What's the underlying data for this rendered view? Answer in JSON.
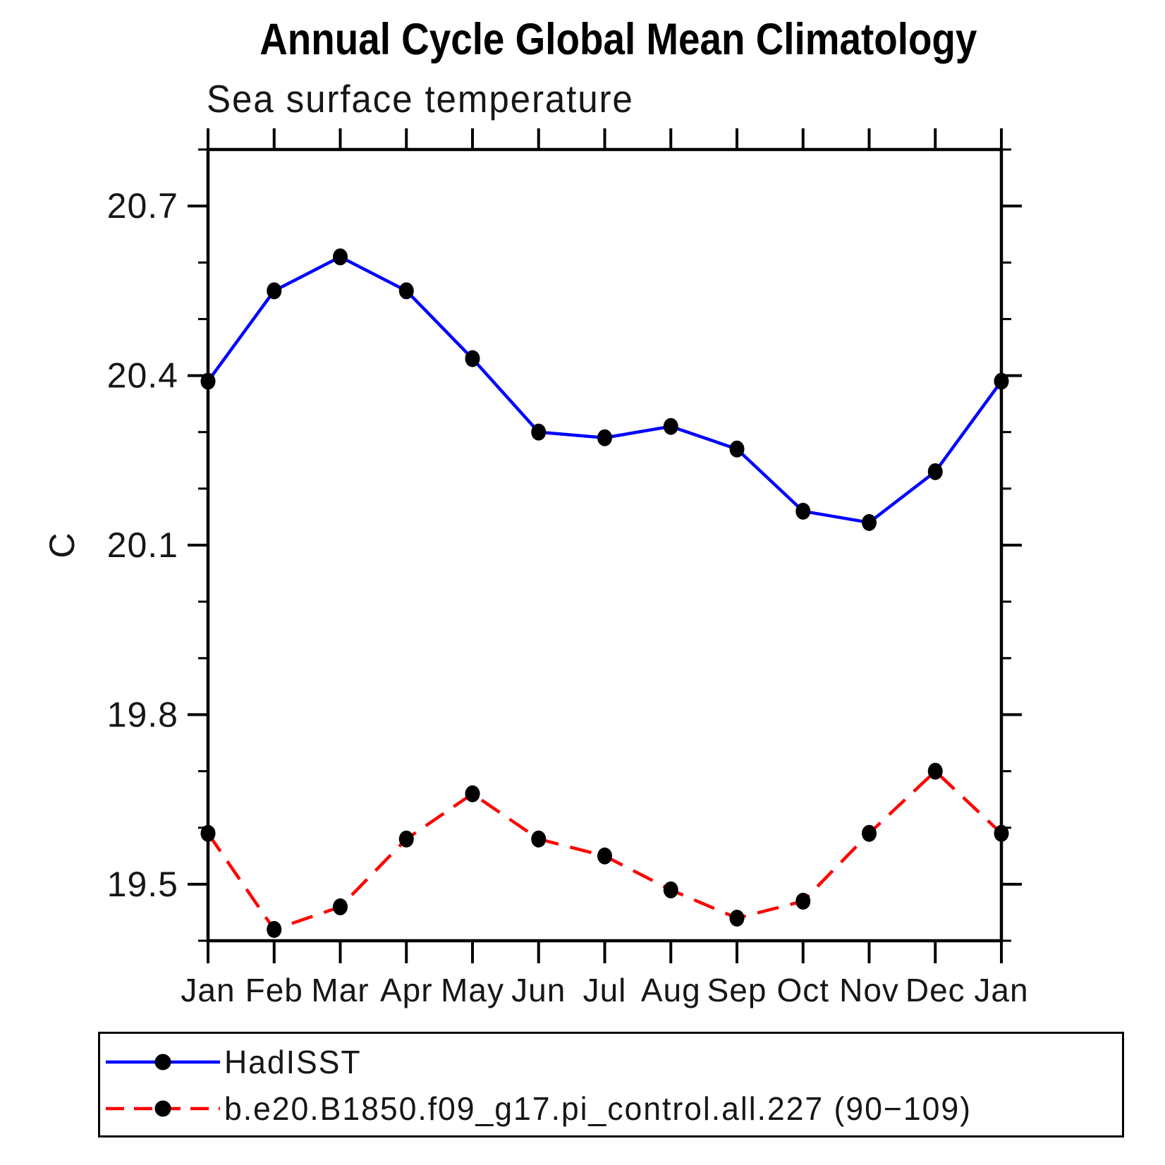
{
  "chart_data": {
    "type": "line",
    "title": "Annual Cycle Global Mean Climatology",
    "subtitle": "Sea surface temperature",
    "ylabel": "C",
    "xlabel": "",
    "categories": [
      "Jan",
      "Feb",
      "Mar",
      "Apr",
      "May",
      "Jun",
      "Jul",
      "Aug",
      "Sep",
      "Oct",
      "Nov",
      "Dec",
      "Jan"
    ],
    "ylim": [
      19.4,
      20.8
    ],
    "yticks_major": [
      {
        "value": 20.7,
        "label": "20.7"
      },
      {
        "value": 20.4,
        "label": "20.4"
      },
      {
        "value": 20.1,
        "label": "20.1"
      },
      {
        "value": 19.8,
        "label": "19.8"
      },
      {
        "value": 19.5,
        "label": "19.5"
      }
    ],
    "yticks_minor": [
      19.4,
      19.6,
      19.7,
      19.9,
      20.0,
      20.2,
      20.3,
      20.5,
      20.6,
      20.8
    ],
    "grid": false,
    "legend_position": "bottom-box",
    "axis_color": "#000000",
    "background_color": "#ffffff",
    "series": [
      {
        "name": "HadISST",
        "color": "#0000ff",
        "line_style": "solid",
        "marker": "circle",
        "marker_color": "#000000",
        "values": [
          20.39,
          20.55,
          20.61,
          20.55,
          20.43,
          20.3,
          20.29,
          20.31,
          20.27,
          20.16,
          20.14,
          20.23,
          20.39
        ]
      },
      {
        "name": "b.e20.B1850.f09_g17.pi_control.all.227 (90−109)",
        "color": "#ff0000",
        "line_style": "dashed",
        "marker": "circle",
        "marker_color": "#000000",
        "values": [
          19.59,
          19.42,
          19.46,
          19.58,
          19.66,
          19.58,
          19.55,
          19.49,
          19.44,
          19.47,
          19.59,
          19.7,
          19.59
        ]
      }
    ]
  }
}
